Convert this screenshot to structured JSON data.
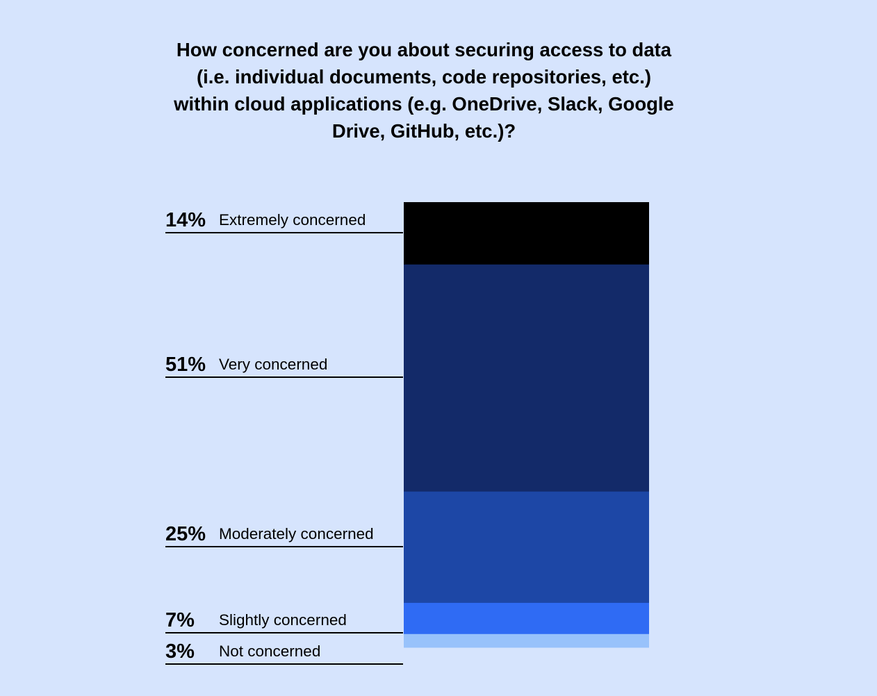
{
  "chart_data": {
    "type": "bar",
    "stacked": true,
    "title": "How concerned are you about securing access to data (i.e. individual documents, code repositories, etc.) within cloud applications (e.g. OneDrive, Slack, Google Drive, GitHub, etc.)?",
    "categories": [
      "Extremely concerned",
      "Very concerned",
      "Moderately concerned",
      "Slightly concerned",
      "Not concerned"
    ],
    "values": [
      14,
      51,
      25,
      7,
      3
    ],
    "value_labels": [
      "14%",
      "51%",
      "25%",
      "7%",
      "3%"
    ],
    "colors": [
      "#000000",
      "#132a69",
      "#1d47a6",
      "#2f6bf4",
      "#98c2fb"
    ],
    "unit": "%"
  }
}
